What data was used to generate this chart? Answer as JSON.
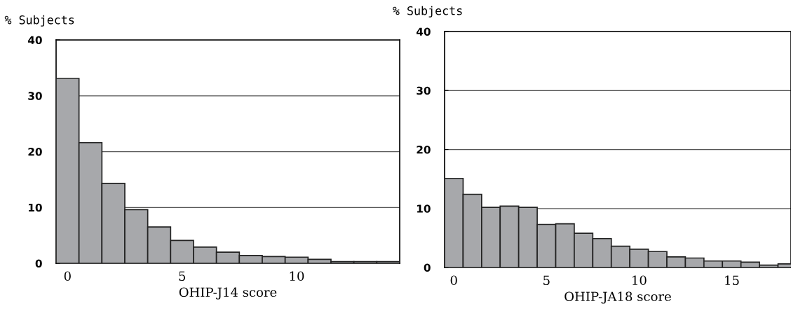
{
  "chart_data": [
    {
      "type": "bar",
      "xlabel": "OHIP-J14 score",
      "ylabel": "% Subjects",
      "x": [
        0,
        1,
        2,
        3,
        4,
        5,
        6,
        7,
        8,
        9,
        10,
        11,
        12,
        13,
        14
      ],
      "values": [
        33.1,
        21.6,
        14.3,
        9.6,
        6.5,
        4.1,
        2.9,
        2.0,
        1.4,
        1.2,
        1.1,
        0.7,
        0.3,
        0.3,
        0.3
      ],
      "color": "#a7a8ab",
      "xlim": [
        -0.5,
        14.5
      ],
      "xticks": [
        0,
        5,
        10
      ],
      "ylim": [
        0,
        40
      ],
      "yticks": [
        0,
        10,
        20,
        30,
        40
      ],
      "grid": "y"
    },
    {
      "type": "bar",
      "xlabel": "OHIP-JA18 score",
      "ylabel": "% Subjects",
      "x": [
        0,
        1,
        2,
        3,
        4,
        5,
        6,
        7,
        8,
        9,
        10,
        11,
        12,
        13,
        14,
        15,
        16,
        17,
        18
      ],
      "values": [
        15.1,
        12.4,
        10.2,
        10.4,
        10.2,
        7.3,
        7.4,
        5.8,
        4.9,
        3.6,
        3.1,
        2.7,
        1.8,
        1.6,
        1.1,
        1.1,
        0.9,
        0.4,
        0.6
      ],
      "color": "#a7a8ab",
      "xlim": [
        -0.5,
        18.2
      ],
      "xticks": [
        0,
        5,
        10,
        15
      ],
      "ylim": [
        0,
        40
      ],
      "yticks": [
        0,
        10,
        20,
        30,
        40
      ],
      "grid": "y"
    }
  ]
}
